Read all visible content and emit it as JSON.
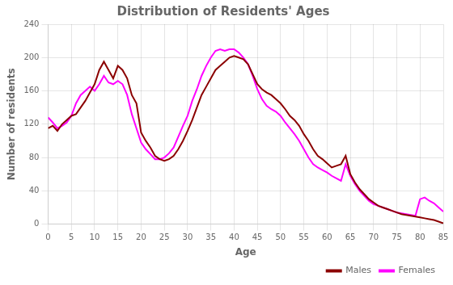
{
  "chart_data": {
    "type": "line",
    "title": "Distribution of Residents' Ages",
    "xlabel": "Age",
    "ylabel": "Number of residents",
    "x": [
      0,
      1,
      2,
      3,
      4,
      5,
      6,
      7,
      8,
      9,
      10,
      11,
      12,
      13,
      14,
      15,
      16,
      17,
      18,
      19,
      20,
      21,
      22,
      23,
      24,
      25,
      26,
      27,
      28,
      29,
      30,
      31,
      32,
      33,
      34,
      35,
      36,
      37,
      38,
      39,
      40,
      41,
      42,
      43,
      44,
      45,
      46,
      47,
      48,
      49,
      50,
      51,
      52,
      53,
      54,
      55,
      56,
      57,
      58,
      59,
      60,
      61,
      62,
      63,
      64,
      65,
      66,
      67,
      68,
      69,
      70,
      71,
      72,
      73,
      74,
      75,
      76,
      77,
      78,
      79,
      80,
      81,
      82,
      83,
      84,
      85
    ],
    "series": [
      {
        "name": "Males",
        "color": "#8b0000",
        "values": [
          115,
          118,
          112,
          120,
          125,
          130,
          132,
          140,
          148,
          158,
          168,
          185,
          195,
          185,
          175,
          190,
          185,
          175,
          155,
          145,
          110,
          100,
          92,
          82,
          78,
          76,
          78,
          82,
          90,
          100,
          112,
          125,
          140,
          155,
          165,
          175,
          185,
          190,
          195,
          200,
          202,
          200,
          198,
          192,
          180,
          168,
          162,
          158,
          155,
          150,
          145,
          138,
          130,
          125,
          118,
          108,
          100,
          90,
          82,
          78,
          73,
          68,
          70,
          72,
          82,
          60,
          50,
          42,
          36,
          30,
          26,
          22,
          20,
          18,
          16,
          14,
          12,
          11,
          10,
          9,
          8,
          7,
          6,
          5,
          3,
          1
        ]
      },
      {
        "name": "Females",
        "color": "#ff00ff",
        "values": [
          128,
          122,
          115,
          118,
          122,
          130,
          145,
          155,
          160,
          165,
          160,
          168,
          178,
          170,
          168,
          172,
          168,
          155,
          132,
          115,
          98,
          90,
          84,
          78,
          78,
          80,
          85,
          92,
          105,
          118,
          130,
          148,
          162,
          178,
          190,
          200,
          208,
          210,
          208,
          210,
          210,
          206,
          200,
          192,
          178,
          162,
          150,
          142,
          138,
          135,
          130,
          122,
          115,
          108,
          100,
          90,
          80,
          72,
          68,
          65,
          62,
          58,
          55,
          52,
          72,
          58,
          48,
          40,
          34,
          28,
          24,
          22,
          20,
          18,
          16,
          14,
          13,
          12,
          11,
          10,
          30,
          32,
          28,
          25,
          20,
          15
        ]
      }
    ],
    "xlim": [
      0,
      85
    ],
    "ylim": [
      0,
      240
    ],
    "xticks": [
      0,
      5,
      10,
      15,
      20,
      25,
      30,
      35,
      40,
      45,
      50,
      55,
      60,
      65,
      70,
      75,
      80,
      85
    ],
    "yticks": [
      0,
      40,
      80,
      120,
      160,
      200,
      240
    ],
    "grid": true,
    "legend": "lower right"
  }
}
